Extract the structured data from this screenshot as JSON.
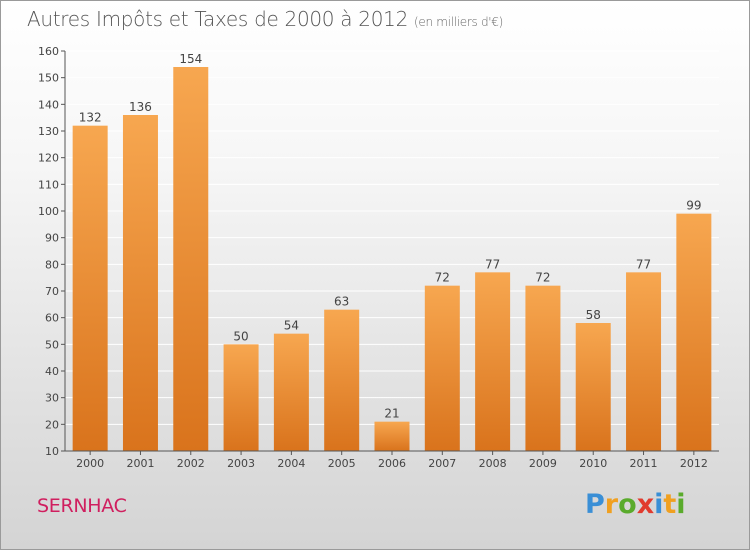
{
  "title": "Autres Impôts et Taxes de 2000 à 2012",
  "subtitle": "(en milliers d'€)",
  "commune": "SERNHAC",
  "logo": {
    "text": "Proxiti",
    "letters": [
      {
        "ch": "P",
        "color": "#3a8fd6"
      },
      {
        "ch": "r",
        "color": "#f0a020"
      },
      {
        "ch": "o",
        "color": "#5aab2c"
      },
      {
        "ch": "x",
        "color": "#e13b2e"
      },
      {
        "ch": "i",
        "color": "#3a8fd6"
      },
      {
        "ch": "t",
        "color": "#f0a020"
      },
      {
        "ch": "i",
        "color": "#5aab2c"
      }
    ]
  },
  "colors": {
    "bar_top": "#f7a750",
    "bar_bottom": "#d9731c",
    "grid": "#ffffff",
    "axis": "#555555"
  },
  "chart_data": {
    "type": "bar",
    "categories": [
      "2000",
      "2001",
      "2002",
      "2003",
      "2004",
      "2005",
      "2006",
      "2007",
      "2008",
      "2009",
      "2010",
      "2011",
      "2012"
    ],
    "values": [
      132,
      136,
      154,
      50,
      54,
      63,
      21,
      72,
      77,
      72,
      58,
      77,
      99
    ],
    "ylim": [
      10,
      160
    ],
    "yticks": [
      10,
      20,
      30,
      40,
      50,
      60,
      70,
      80,
      90,
      100,
      110,
      120,
      130,
      140,
      150,
      160
    ],
    "grid": true,
    "xlabel": "",
    "ylabel": ""
  }
}
